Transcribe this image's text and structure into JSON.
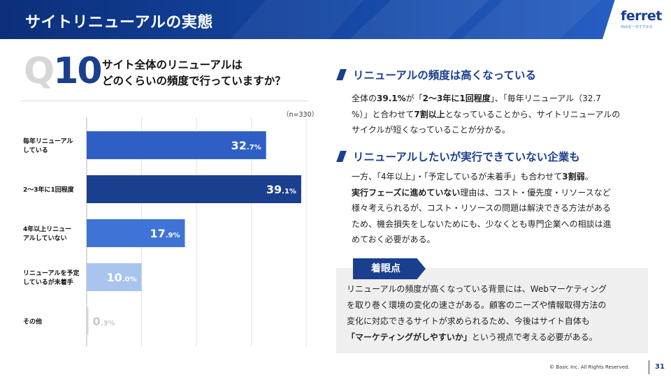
{
  "header": {
    "title": "サイトリニューアルの実態"
  },
  "logo": {
    "name": "ferret",
    "tagline": "Webを一歩すすめる"
  },
  "question": {
    "number_prefix": "Q",
    "number": "10",
    "line1": "サイト全体のリニューアルは",
    "line2": "どのくらいの頻度で行っていますか？"
  },
  "sample_size": "（n=330）",
  "chart_data": {
    "type": "bar",
    "orientation": "horizontal",
    "categories": [
      [
        "毎年リニューアル",
        "している"
      ],
      [
        "2〜3年に1回程度"
      ],
      [
        "4年以上リニュー",
        "アルしていない"
      ],
      [
        "リニューアルを予定",
        "しているが未着手"
      ],
      [
        "その他"
      ]
    ],
    "values": [
      32.7,
      39.1,
      17.9,
      10.0,
      0.3
    ],
    "labels": [
      {
        "int": "32",
        "dec": ".7%"
      },
      {
        "int": "39",
        "dec": ".1%"
      },
      {
        "int": "17",
        "dec": ".9%"
      },
      {
        "int": "10",
        "dec": ".0%"
      },
      {
        "int": "0",
        "dec": ".3%"
      }
    ],
    "colors": [
      "#2f5fc5",
      "#1a3f8f",
      "#3f73d6",
      "#a8c4ef",
      "#d6d6d6"
    ],
    "xlim": [
      0,
      40
    ],
    "grid": true
  },
  "section1": {
    "heading": "リニューアルの頻度は高くなっている",
    "body": [
      [
        {
          "t": "全体の"
        },
        {
          "t": "39.1%",
          "b": true
        },
        {
          "t": "が「"
        },
        {
          "t": "2〜3年に1回程度",
          "b": true
        },
        {
          "t": "」、「毎年リニューアル（32.7"
        }
      ],
      [
        {
          "t": "%）」と合わせて"
        },
        {
          "t": "7割以上",
          "b": true
        },
        {
          "t": "となっていることから、サイトリニューアルの"
        }
      ],
      [
        {
          "t": "サイクルが短くなっていることが分かる。"
        }
      ]
    ]
  },
  "section2": {
    "heading": "リニューアルしたいが実行できていない企業も",
    "body": [
      [
        {
          "t": "一方、「4年以上」・「予定しているが未着手」も合わせて"
        },
        {
          "t": "3割弱",
          "b": true
        },
        {
          "t": "。"
        }
      ],
      [
        {
          "t": "実行フェーズに進めていない",
          "b": true
        },
        {
          "t": "理由は、コスト・優先度・リソースなど"
        }
      ],
      [
        {
          "t": "様々考えられるが、コスト・リソースの問題は解決できる方法がある"
        }
      ],
      [
        {
          "t": "ため、機会損失をしないためにも、少なくとも専門企業への相談は進"
        }
      ],
      [
        {
          "t": "めておく必要がある。"
        }
      ]
    ]
  },
  "point": {
    "tag": "着眼点",
    "body": [
      [
        {
          "t": "リニューアルの頻度が高くなっている背景には、Webマーケティング"
        }
      ],
      [
        {
          "t": "を取り巻く環境の変化の速さがある。顧客のニーズや情報取得方法の"
        }
      ],
      [
        {
          "t": "変化に対応できるサイトが求められるため、今後はサイト自体も"
        }
      ],
      [
        {
          "t": "「マーケティングがしやすいか」",
          "b": true
        },
        {
          "t": "という視点で考える必要がある。"
        }
      ]
    ]
  },
  "footer": {
    "copyright": "© Basic Inc. All Rights Reserved.",
    "page": "31"
  }
}
